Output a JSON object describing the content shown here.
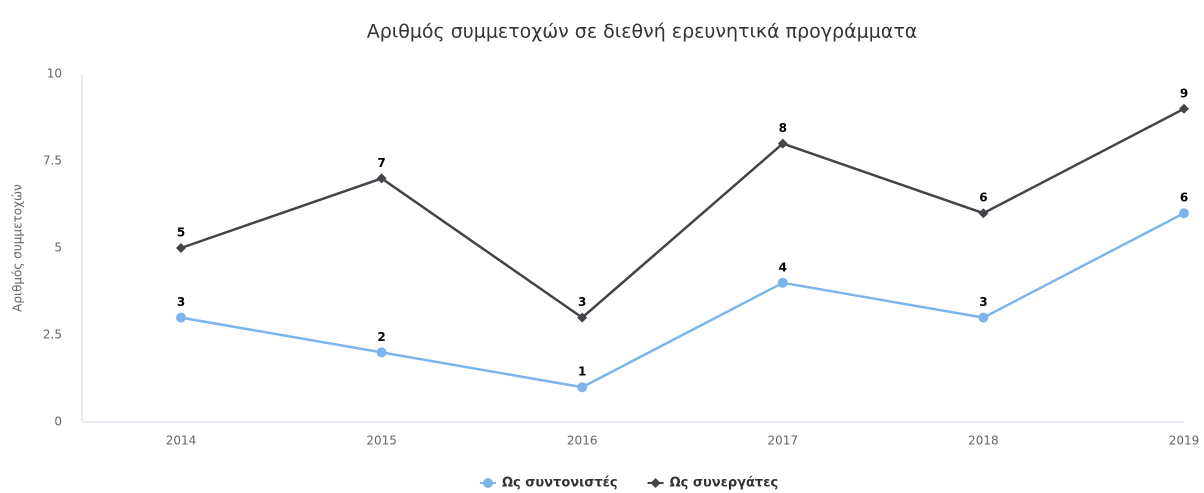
{
  "chart_data": {
    "type": "line",
    "title": "Αριθμός συμμετοχών σε διεθνή ερευνητικά προγράμματα",
    "y_label": "Αριθμός συμμετοχών",
    "categories": [
      "2014",
      "2015",
      "2016",
      "2017",
      "2018",
      "2019"
    ],
    "series": [
      {
        "name": "Ως συντονιστές",
        "color": "#7cb5ec",
        "marker": "circle",
        "values": [
          3,
          2,
          1,
          4,
          3,
          6
        ]
      },
      {
        "name": "Ως συνεργάτες",
        "color": "#434348",
        "marker": "diamond",
        "values": [
          5,
          7,
          3,
          8,
          6,
          9
        ]
      }
    ],
    "ylim": [
      0,
      10
    ],
    "yticks": [
      0,
      2.5,
      5,
      7.5,
      10
    ],
    "grid": false,
    "legend": "bottom"
  }
}
